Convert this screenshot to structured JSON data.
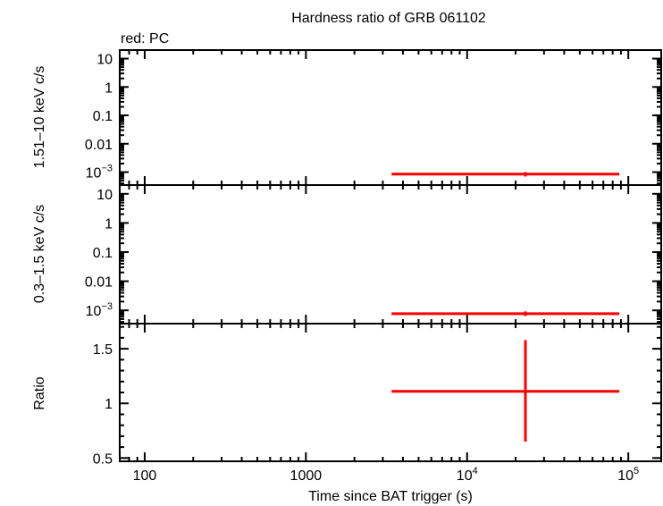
{
  "chart_data": {
    "type": "scatter",
    "title": "Hardness ratio of GRB 061102",
    "legend_text": "red: PC",
    "xlabel": "Time since BAT trigger (s)",
    "x_scale": "log",
    "xlim": [
      70,
      160000
    ],
    "x_ticks": [
      {
        "value": 100,
        "label": "100",
        "exp": ""
      },
      {
        "value": 1000,
        "label": "1000",
        "exp": ""
      },
      {
        "value": 10000,
        "label": "10",
        "exp": "4"
      },
      {
        "value": 100000,
        "label": "10",
        "exp": "5"
      }
    ],
    "panels": [
      {
        "id": "hard",
        "ylabel": "1.51–10 keV c/s",
        "y_scale": "log",
        "ylim": [
          0.00035,
          20
        ],
        "y_ticks": [
          {
            "value": 10,
            "label": "10",
            "exp": ""
          },
          {
            "value": 1,
            "label": "1",
            "exp": ""
          },
          {
            "value": 0.1,
            "label": "0.1",
            "exp": ""
          },
          {
            "value": 0.01,
            "label": "0.01",
            "exp": ""
          },
          {
            "value": 0.001,
            "label": "10",
            "exp": "−3"
          }
        ],
        "series": [
          {
            "name": "PC",
            "color": "#ff0000",
            "points": [
              {
                "x": 23000,
                "xlo": 3400,
                "xhi": 88000,
                "y": 0.00085,
                "ylo": 0.0007,
                "yhi": 0.001
              }
            ]
          }
        ]
      },
      {
        "id": "soft",
        "ylabel": "0.3–1.5 keV c/s",
        "y_scale": "log",
        "ylim": [
          0.00035,
          20
        ],
        "y_ticks": [
          {
            "value": 10,
            "label": "10",
            "exp": ""
          },
          {
            "value": 1,
            "label": "1",
            "exp": ""
          },
          {
            "value": 0.1,
            "label": "0.1",
            "exp": ""
          },
          {
            "value": 0.01,
            "label": "0.01",
            "exp": ""
          },
          {
            "value": 0.001,
            "label": "10",
            "exp": "−3"
          }
        ],
        "series": [
          {
            "name": "PC",
            "color": "#ff0000",
            "points": [
              {
                "x": 23000,
                "xlo": 3400,
                "xhi": 88000,
                "y": 0.00077,
                "ylo": 0.00064,
                "yhi": 0.00092
              }
            ]
          }
        ]
      },
      {
        "id": "ratio",
        "ylabel": "Ratio",
        "y_scale": "linear",
        "ylim": [
          0.47,
          1.73
        ],
        "y_ticks": [
          {
            "value": 1.5,
            "label": "1.5",
            "exp": ""
          },
          {
            "value": 1,
            "label": "1",
            "exp": ""
          },
          {
            "value": 0.5,
            "label": "0.5",
            "exp": ""
          }
        ],
        "series": [
          {
            "name": "PC",
            "color": "#ff0000",
            "points": [
              {
                "x": 23000,
                "xlo": 3400,
                "xhi": 88000,
                "y": 1.11,
                "ylo": 0.65,
                "yhi": 1.58
              }
            ]
          }
        ]
      }
    ]
  }
}
